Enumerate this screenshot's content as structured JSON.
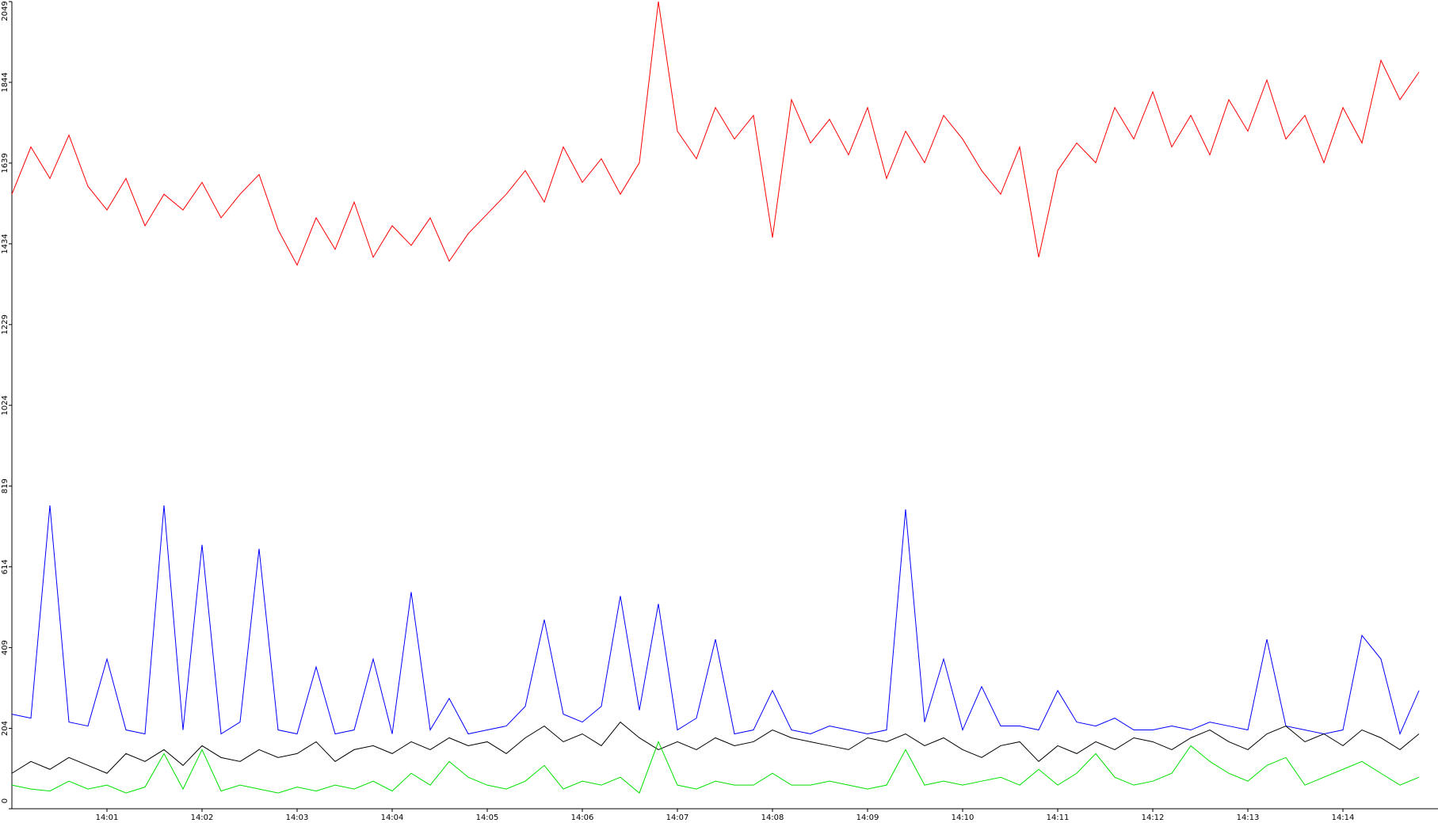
{
  "chart_data": {
    "type": "line",
    "x": [
      840,
      840.2,
      840.4,
      840.6,
      840.8,
      841,
      841.2,
      841.4,
      841.6,
      841.8,
      842,
      842.2,
      842.4,
      842.6,
      842.8,
      843,
      843.2,
      843.4,
      843.6,
      843.8,
      844,
      844.2,
      844.4,
      844.6,
      844.8,
      845,
      845.2,
      845.4,
      845.6,
      845.8,
      846,
      846.2,
      846.4,
      846.6,
      846.8,
      847,
      847.2,
      847.4,
      847.6,
      847.8,
      848,
      848.2,
      848.4,
      848.6,
      848.8,
      849,
      849.2,
      849.4,
      849.6,
      849.8,
      850,
      850.2,
      850.4,
      850.6,
      850.8,
      851,
      851.2,
      851.4,
      851.6,
      851.8,
      852,
      852.2,
      852.4,
      852.6,
      852.8,
      853,
      853.2,
      853.4,
      853.6,
      853.8,
      854,
      854.2,
      854.4,
      854.6,
      854.8
    ],
    "series": [
      {
        "color": "#ff0000",
        "values": [
          1560,
          1680,
          1600,
          1710,
          1580,
          1520,
          1600,
          1480,
          1560,
          1520,
          1590,
          1500,
          1560,
          1610,
          1470,
          1380,
          1500,
          1420,
          1540,
          1400,
          1480,
          1430,
          1500,
          1390,
          1460,
          1510,
          1560,
          1620,
          1540,
          1680,
          1590,
          1650,
          1560,
          1640,
          2049,
          1720,
          1650,
          1780,
          1700,
          1760,
          1450,
          1800,
          1690,
          1750,
          1660,
          1780,
          1600,
          1720,
          1640,
          1760,
          1700,
          1620,
          1560,
          1680,
          1400,
          1620,
          1690,
          1640,
          1780,
          1700,
          1820,
          1680,
          1760,
          1660,
          1800,
          1720,
          1850,
          1700,
          1760,
          1640,
          1780,
          1690,
          1900,
          1800,
          1870
        ]
      },
      {
        "color": "#0000ff",
        "values": [
          240,
          230,
          770,
          220,
          210,
          380,
          200,
          190,
          770,
          200,
          670,
          190,
          220,
          660,
          200,
          190,
          360,
          190,
          200,
          380,
          190,
          550,
          200,
          280,
          190,
          200,
          210,
          260,
          480,
          240,
          220,
          260,
          540,
          250,
          520,
          200,
          230,
          430,
          190,
          200,
          300,
          200,
          190,
          210,
          200,
          190,
          200,
          760,
          220,
          380,
          200,
          310,
          210,
          210,
          200,
          300,
          220,
          210,
          230,
          200,
          200,
          210,
          200,
          220,
          210,
          200,
          430,
          210,
          200,
          190,
          200,
          440,
          380,
          190,
          300
        ]
      },
      {
        "color": "#000000",
        "values": [
          90,
          120,
          100,
          130,
          110,
          90,
          140,
          120,
          150,
          110,
          160,
          130,
          120,
          150,
          130,
          140,
          170,
          120,
          150,
          160,
          140,
          170,
          150,
          180,
          160,
          170,
          140,
          180,
          210,
          170,
          190,
          160,
          220,
          180,
          150,
          170,
          150,
          180,
          160,
          170,
          200,
          180,
          170,
          160,
          150,
          180,
          170,
          190,
          160,
          180,
          150,
          130,
          160,
          170,
          120,
          160,
          140,
          170,
          150,
          180,
          170,
          150,
          180,
          200,
          170,
          150,
          190,
          210,
          170,
          190,
          160,
          200,
          180,
          150,
          190
        ]
      },
      {
        "color": "#00e000",
        "values": [
          60,
          50,
          45,
          70,
          50,
          60,
          40,
          55,
          140,
          50,
          150,
          45,
          60,
          50,
          40,
          55,
          45,
          60,
          50,
          70,
          45,
          90,
          60,
          120,
          80,
          60,
          50,
          70,
          110,
          50,
          70,
          60,
          80,
          40,
          170,
          60,
          50,
          70,
          60,
          60,
          90,
          60,
          60,
          70,
          60,
          50,
          60,
          150,
          60,
          70,
          60,
          70,
          80,
          60,
          100,
          60,
          90,
          140,
          80,
          60,
          70,
          90,
          160,
          120,
          90,
          70,
          110,
          130,
          60,
          80,
          100,
          120,
          90,
          60,
          80
        ]
      }
    ],
    "xlim": [
      840,
      855
    ],
    "xticks": [
      {
        "value": 841,
        "label": "14:01"
      },
      {
        "value": 842,
        "label": "14:02"
      },
      {
        "value": 843,
        "label": "14:03"
      },
      {
        "value": 844,
        "label": "14:04"
      },
      {
        "value": 845,
        "label": "14:05"
      },
      {
        "value": 846,
        "label": "14:06"
      },
      {
        "value": 847,
        "label": "14:07"
      },
      {
        "value": 848,
        "label": "14:08"
      },
      {
        "value": 849,
        "label": "14:09"
      },
      {
        "value": 850,
        "label": "14:10"
      },
      {
        "value": 851,
        "label": "14:11"
      },
      {
        "value": 852,
        "label": "14:12"
      },
      {
        "value": 853,
        "label": "14:13"
      },
      {
        "value": 854,
        "label": "14:14"
      }
    ],
    "ylim": [
      0,
      2049
    ],
    "yticks": [
      0,
      204,
      409,
      614,
      819,
      1024,
      1229,
      1434,
      1639,
      1844,
      2049
    ]
  }
}
